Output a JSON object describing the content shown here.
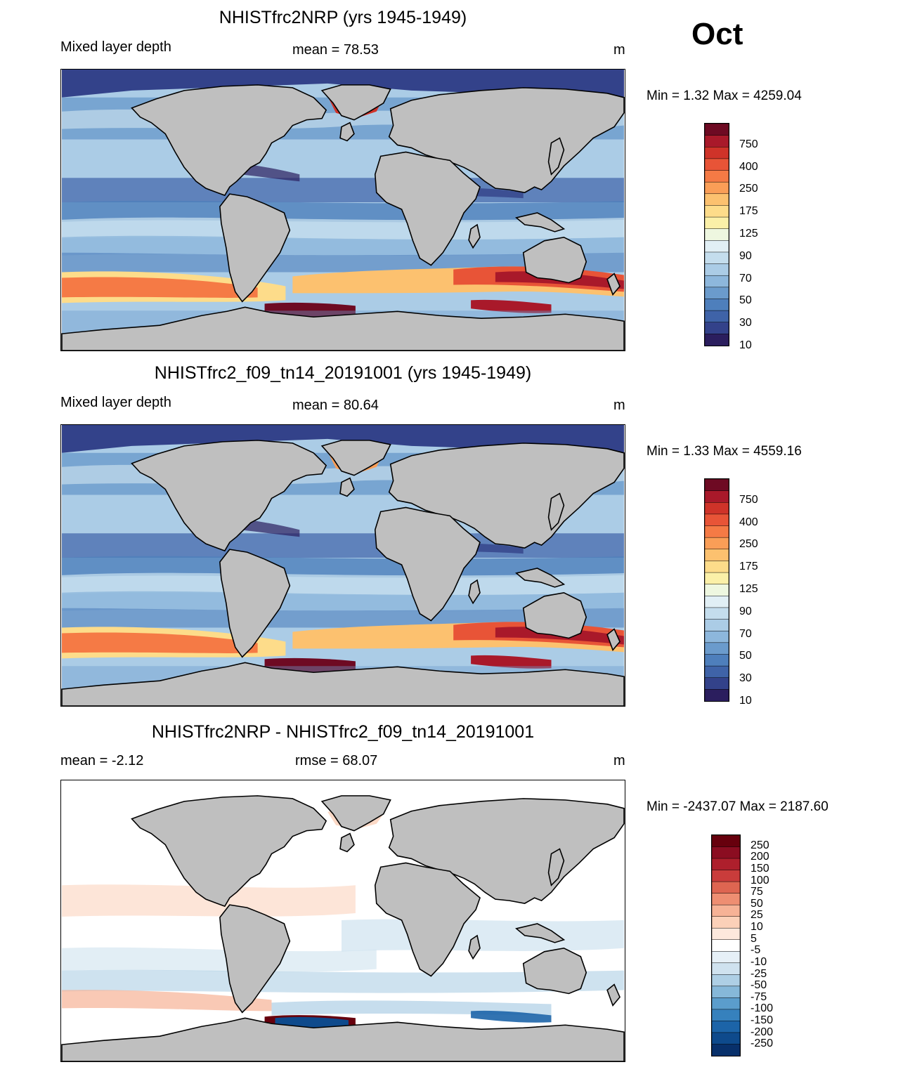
{
  "month": "Oct",
  "colors": {
    "land": "#bfbfbf",
    "coast": "#000000",
    "mld_scale": [
      "#2b1e5e",
      "#33428a",
      "#3f63a8",
      "#4e7fbc",
      "#6b9bcc",
      "#8db7dc",
      "#abcce6",
      "#c4dded",
      "#e1eff5",
      "#eef7e0",
      "#fbf0a8",
      "#fddc8a",
      "#fcc16f",
      "#fa9e57",
      "#f57a45",
      "#e85437",
      "#cf3329",
      "#a9192a",
      "#6e0a23"
    ],
    "diff_scale": [
      "#08306b",
      "#0e4a8c",
      "#1c64a8",
      "#3681bd",
      "#5b9dcc",
      "#86b8d9",
      "#aecfe5",
      "#cfe2ef",
      "#e6f0f7",
      "#ffffff",
      "#fde8dc",
      "#fbd0b8",
      "#f6b296",
      "#ee8e72",
      "#de6551",
      "#c93c3b",
      "#ae1f2c",
      "#8b0d21",
      "#67000d"
    ]
  },
  "panels": [
    {
      "title": "NHISTfrc2NRP (yrs 1945-1949)",
      "left_label": "Mixed layer depth",
      "center_label": "mean =  78.53",
      "units": "m",
      "minmax": "Min =    1.32 Max = 4259.04",
      "colorbar_labels": [
        "750",
        "400",
        "250",
        "175",
        "125",
        "90",
        "70",
        "50",
        "30",
        "10"
      ]
    },
    {
      "title": "NHISTfrc2_f09_tn14_20191001 (yrs 1945-1949)",
      "left_label": "Mixed layer depth",
      "center_label": "mean =  80.64",
      "units": "m",
      "minmax": "Min =    1.33 Max = 4559.16",
      "colorbar_labels": [
        "750",
        "400",
        "250",
        "175",
        "125",
        "90",
        "70",
        "50",
        "30",
        "10"
      ]
    },
    {
      "title": "NHISTfrc2NRP - NHISTfrc2_f09_tn14_20191001",
      "left_label": "mean =  -2.12",
      "center_label": "rmse =  68.07",
      "units": "m",
      "minmax": "Min = -2437.07 Max = 2187.60",
      "colorbar_labels": [
        "250",
        "200",
        "150",
        "100",
        "75",
        "50",
        "25",
        "10",
        "5",
        "-5",
        "-10",
        "-25",
        "-50",
        "-75",
        "-100",
        "-150",
        "-200",
        "-250"
      ]
    }
  ]
}
